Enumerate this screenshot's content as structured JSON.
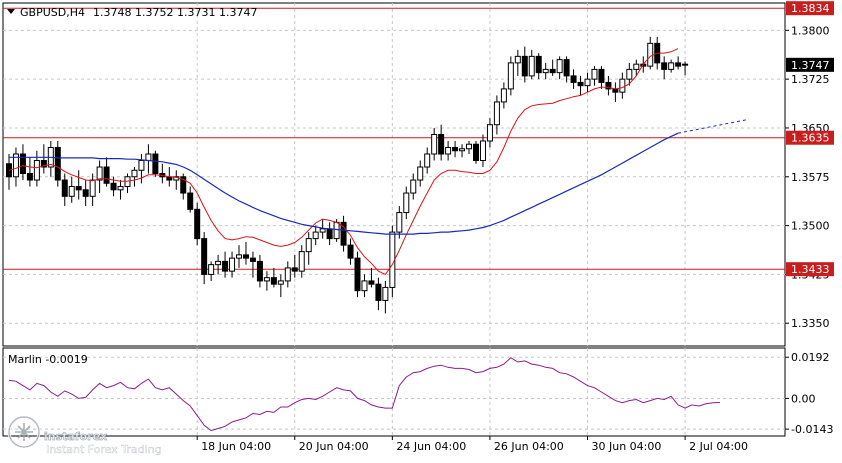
{
  "header": {
    "symbol": "GBPUSD,H4",
    "ohlc": "1.3748 1.3752 1.3731 1.3747"
  },
  "colors": {
    "background": "#ffffff",
    "grid": "#c8c8c8",
    "candle": "#000000",
    "ma_fast": "#d8141a",
    "ma_slow": "#1a2ab8",
    "level_line": "#c81e1e",
    "level_tag": "#c81e1e",
    "price_tag": "#000000",
    "oscillator": "#8c1c8c"
  },
  "chart_data": [
    {
      "type": "candlestick",
      "y_ticks": [
        "1.3800",
        "1.3725",
        "1.3650",
        "1.3575",
        "1.3500",
        "1.3425",
        "1.3350"
      ],
      "ylim": [
        1.3315,
        1.3842
      ],
      "x_ticks": [
        "18 Jun 04:00",
        "20 Jun 04:00",
        "24 Jun 04:00",
        "26 Jun 04:00",
        "30 Jun 04:00",
        "2 Jul 04:00"
      ],
      "horizontal_levels": [
        {
          "value": 1.3834,
          "label": "1.3834"
        },
        {
          "value": 1.3635,
          "label": "1.3635"
        },
        {
          "value": 1.3433,
          "label": "1.3433"
        }
      ],
      "current_price": {
        "value": 1.3747,
        "label": "1.3747"
      },
      "candles": [
        [
          1.3595,
          1.361,
          1.3555,
          1.3575
        ],
        [
          1.3575,
          1.362,
          1.356,
          1.361
        ],
        [
          1.361,
          1.3625,
          1.357,
          1.358
        ],
        [
          1.358,
          1.3605,
          1.356,
          1.357
        ],
        [
          1.357,
          1.3615,
          1.356,
          1.36
        ],
        [
          1.36,
          1.3625,
          1.358,
          1.359
        ],
        [
          1.359,
          1.363,
          1.3575,
          1.362
        ],
        [
          1.362,
          1.363,
          1.356,
          1.357
        ],
        [
          1.357,
          1.358,
          1.353,
          1.3545
        ],
        [
          1.3545,
          1.3575,
          1.3535,
          1.356
        ],
        [
          1.356,
          1.3585,
          1.354,
          1.3555
        ],
        [
          1.3555,
          1.357,
          1.353,
          1.3545
        ],
        [
          1.3545,
          1.358,
          1.353,
          1.357
        ],
        [
          1.357,
          1.36,
          1.355,
          1.359
        ],
        [
          1.359,
          1.3605,
          1.356,
          1.3565
        ],
        [
          1.3565,
          1.3575,
          1.3545,
          1.3555
        ],
        [
          1.3555,
          1.357,
          1.354,
          1.356
        ],
        [
          1.356,
          1.358,
          1.355,
          1.3575
        ],
        [
          1.3575,
          1.359,
          1.356,
          1.3585
        ],
        [
          1.3585,
          1.361,
          1.3565,
          1.36
        ],
        [
          1.36,
          1.3625,
          1.358,
          1.361
        ],
        [
          1.361,
          1.3615,
          1.3575,
          1.358
        ],
        [
          1.358,
          1.3595,
          1.3565,
          1.3575
        ],
        [
          1.3575,
          1.359,
          1.356,
          1.357
        ],
        [
          1.357,
          1.3585,
          1.3555,
          1.3575
        ],
        [
          1.3575,
          1.358,
          1.354,
          1.355
        ],
        [
          1.355,
          1.356,
          1.352,
          1.3525
        ],
        [
          1.3525,
          1.3535,
          1.347,
          1.348
        ],
        [
          1.348,
          1.349,
          1.341,
          1.3425
        ],
        [
          1.3425,
          1.3445,
          1.3415,
          1.344
        ],
        [
          1.344,
          1.3455,
          1.3425,
          1.3445
        ],
        [
          1.3445,
          1.346,
          1.342,
          1.343
        ],
        [
          1.343,
          1.346,
          1.342,
          1.345
        ],
        [
          1.345,
          1.347,
          1.3435,
          1.3455
        ],
        [
          1.3455,
          1.3475,
          1.344,
          1.345
        ],
        [
          1.345,
          1.346,
          1.342,
          1.3445
        ],
        [
          1.3445,
          1.3455,
          1.3405,
          1.3415
        ],
        [
          1.3415,
          1.343,
          1.34,
          1.342
        ],
        [
          1.342,
          1.3435,
          1.3405,
          1.341
        ],
        [
          1.341,
          1.3425,
          1.339,
          1.3415
        ],
        [
          1.3415,
          1.3445,
          1.3405,
          1.3435
        ],
        [
          1.3435,
          1.3455,
          1.342,
          1.343
        ],
        [
          1.343,
          1.347,
          1.342,
          1.346
        ],
        [
          1.346,
          1.349,
          1.344,
          1.348
        ],
        [
          1.348,
          1.35,
          1.347,
          1.349
        ],
        [
          1.349,
          1.351,
          1.348,
          1.3495
        ],
        [
          1.3495,
          1.3505,
          1.347,
          1.348
        ],
        [
          1.348,
          1.351,
          1.3475,
          1.3505
        ],
        [
          1.3505,
          1.3515,
          1.346,
          1.347
        ],
        [
          1.347,
          1.348,
          1.344,
          1.345
        ],
        [
          1.345,
          1.346,
          1.339,
          1.34
        ],
        [
          1.34,
          1.3425,
          1.339,
          1.3415
        ],
        [
          1.3415,
          1.3435,
          1.3405,
          1.341
        ],
        [
          1.341,
          1.342,
          1.337,
          1.3385
        ],
        [
          1.3385,
          1.3415,
          1.3365,
          1.3405
        ],
        [
          1.3405,
          1.35,
          1.339,
          1.349
        ],
        [
          1.349,
          1.353,
          1.348,
          1.352
        ],
        [
          1.352,
          1.356,
          1.351,
          1.355
        ],
        [
          1.355,
          1.358,
          1.354,
          1.357
        ],
        [
          1.357,
          1.36,
          1.356,
          1.359
        ],
        [
          1.359,
          1.362,
          1.358,
          1.361
        ],
        [
          1.361,
          1.365,
          1.36,
          1.364
        ],
        [
          1.364,
          1.3655,
          1.36,
          1.361
        ],
        [
          1.361,
          1.363,
          1.36,
          1.362
        ],
        [
          1.362,
          1.363,
          1.3605,
          1.3615
        ],
        [
          1.3615,
          1.3625,
          1.3605,
          1.3618
        ],
        [
          1.3618,
          1.363,
          1.361,
          1.3625
        ],
        [
          1.3625,
          1.363,
          1.3595,
          1.36
        ],
        [
          1.36,
          1.364,
          1.359,
          1.363
        ],
        [
          1.363,
          1.3665,
          1.362,
          1.3655
        ],
        [
          1.3655,
          1.37,
          1.364,
          1.369
        ],
        [
          1.369,
          1.372,
          1.368,
          1.371
        ],
        [
          1.371,
          1.376,
          1.37,
          1.375
        ],
        [
          1.375,
          1.377,
          1.373,
          1.376
        ],
        [
          1.376,
          1.3775,
          1.372,
          1.373
        ],
        [
          1.373,
          1.377,
          1.3725,
          1.376
        ],
        [
          1.376,
          1.3765,
          1.3725,
          1.3735
        ],
        [
          1.3735,
          1.375,
          1.3725,
          1.374
        ],
        [
          1.374,
          1.3755,
          1.373,
          1.3735
        ],
        [
          1.3735,
          1.376,
          1.3725,
          1.3755
        ],
        [
          1.3755,
          1.376,
          1.372,
          1.373
        ],
        [
          1.373,
          1.374,
          1.371,
          1.372
        ],
        [
          1.372,
          1.373,
          1.37,
          1.3715
        ],
        [
          1.3715,
          1.3735,
          1.3705,
          1.3725
        ],
        [
          1.3725,
          1.3745,
          1.3715,
          1.374
        ],
        [
          1.374,
          1.3745,
          1.371,
          1.372
        ],
        [
          1.372,
          1.373,
          1.37,
          1.371
        ],
        [
          1.371,
          1.372,
          1.369,
          1.3705
        ],
        [
          1.3705,
          1.3735,
          1.3695,
          1.3725
        ],
        [
          1.3725,
          1.375,
          1.3715,
          1.374
        ],
        [
          1.374,
          1.3755,
          1.373,
          1.3748
        ],
        [
          1.3748,
          1.376,
          1.3735,
          1.3745
        ],
        [
          1.3745,
          1.379,
          1.374,
          1.378
        ],
        [
          1.378,
          1.379,
          1.374,
          1.375
        ],
        [
          1.375,
          1.376,
          1.3725,
          1.374
        ],
        [
          1.374,
          1.3755,
          1.3735,
          1.375
        ],
        [
          1.375,
          1.376,
          1.374,
          1.3745
        ],
        [
          1.3748,
          1.3752,
          1.3731,
          1.3747
        ]
      ],
      "ma_fast": [
        1.3585,
        1.3588,
        1.3592,
        1.359,
        1.3589,
        1.3592,
        1.3594,
        1.359,
        1.3583,
        1.3578,
        1.3574,
        1.357,
        1.3569,
        1.3572,
        1.3572,
        1.357,
        1.3568,
        1.3568,
        1.357,
        1.3573,
        1.3578,
        1.3578,
        1.3577,
        1.3575,
        1.3574,
        1.3571,
        1.3565,
        1.355,
        1.3528,
        1.3508,
        1.3492,
        1.348,
        1.3478,
        1.348,
        1.3483,
        1.3482,
        1.3478,
        1.3474,
        1.347,
        1.3468,
        1.347,
        1.3474,
        1.3482,
        1.3493,
        1.3504,
        1.351,
        1.3508,
        1.3505,
        1.3498,
        1.3485,
        1.3466,
        1.3452,
        1.3442,
        1.343,
        1.3425,
        1.344,
        1.3462,
        1.3486,
        1.3508,
        1.353,
        1.355,
        1.357,
        1.358,
        1.3585,
        1.3585,
        1.3583,
        1.3582,
        1.358,
        1.358,
        1.3585,
        1.3598,
        1.362,
        1.3645,
        1.3665,
        1.3678,
        1.3684,
        1.3686,
        1.3687,
        1.3688,
        1.3692,
        1.3695,
        1.3698,
        1.37,
        1.3705,
        1.371,
        1.3713,
        1.3712,
        1.371,
        1.3712,
        1.3718,
        1.373,
        1.3748,
        1.376,
        1.3765,
        1.3765,
        1.3767,
        1.3772
      ],
      "ma_slow": [
        1.3605,
        1.3605,
        1.3605,
        1.3605,
        1.3605,
        1.3605,
        1.3605,
        1.3604,
        1.3604,
        1.3604,
        1.3604,
        1.3604,
        1.3604,
        1.3603,
        1.3603,
        1.3603,
        1.3603,
        1.3602,
        1.3602,
        1.3601,
        1.36,
        1.3599,
        1.3598,
        1.3596,
        1.3594,
        1.359,
        1.3585,
        1.3578,
        1.3571,
        1.3564,
        1.3557,
        1.355,
        1.3544,
        1.3538,
        1.3533,
        1.3528,
        1.3523,
        1.3519,
        1.3515,
        1.3511,
        1.3508,
        1.3505,
        1.3502,
        1.35,
        1.3498,
        1.3496,
        1.3495,
        1.3494,
        1.3493,
        1.3492,
        1.3491,
        1.349,
        1.3489,
        1.3488,
        1.3487,
        1.3487,
        1.3487,
        1.3487,
        1.3487,
        1.3488,
        1.3488,
        1.3489,
        1.349,
        1.349,
        1.3491,
        1.3492,
        1.3493,
        1.3495,
        1.3497,
        1.35,
        1.3504,
        1.3508,
        1.3513,
        1.3518,
        1.3523,
        1.3528,
        1.3533,
        1.3538,
        1.3543,
        1.3548,
        1.3553,
        1.3558,
        1.3563,
        1.3568,
        1.3573,
        1.3578,
        1.3584,
        1.359,
        1.3596,
        1.3602,
        1.3608,
        1.3614,
        1.362,
        1.3626,
        1.3632,
        1.3637,
        1.3642
      ],
      "ma_slow_projection": [
        [
          96,
          1.3642
        ],
        [
          106,
          1.3663
        ]
      ]
    },
    {
      "type": "line",
      "name": "Marlin",
      "label": "Marlin -0.0019",
      "y_ticks": [
        "0.0192",
        "0.00",
        "-0.0143"
      ],
      "ylim": [
        -0.0175,
        0.0235
      ],
      "values": [
        0.0085,
        0.008,
        0.006,
        0.004,
        0.007,
        0.006,
        0.003,
        0.001,
        0.0035,
        0.002,
        0.0,
        0.0005,
        0.004,
        0.007,
        0.005,
        0.006,
        0.0075,
        0.005,
        0.0045,
        0.007,
        0.009,
        0.005,
        0.004,
        0.005,
        0.002,
        -0.001,
        -0.0035,
        -0.008,
        -0.0125,
        -0.015,
        -0.014,
        -0.013,
        -0.011,
        -0.01,
        -0.009,
        -0.007,
        -0.0075,
        -0.006,
        -0.0065,
        -0.004,
        -0.004,
        -0.002,
        -0.0005,
        0.0,
        -0.0005,
        0.001,
        0.003,
        0.005,
        0.004,
        0.0035,
        0.0,
        -0.001,
        -0.003,
        -0.004,
        -0.0045,
        -0.0045,
        0.006,
        0.01,
        0.012,
        0.0125,
        0.014,
        0.015,
        0.0155,
        0.0145,
        0.014,
        0.014,
        0.0135,
        0.012,
        0.0125,
        0.014,
        0.0145,
        0.016,
        0.019,
        0.017,
        0.0175,
        0.016,
        0.0155,
        0.0145,
        0.014,
        0.012,
        0.0115,
        0.01,
        0.008,
        0.006,
        0.005,
        0.003,
        0.001,
        -0.001,
        -0.002,
        -0.001,
        -0.0005,
        -0.002,
        -0.001,
        0.0,
        -0.0005,
        0.001,
        -0.003,
        -0.0045,
        -0.003,
        -0.0035,
        -0.0025,
        -0.002,
        -0.0019
      ]
    }
  ],
  "watermark": {
    "brand": "instaforex",
    "tagline": "Instant Forex Trading"
  }
}
